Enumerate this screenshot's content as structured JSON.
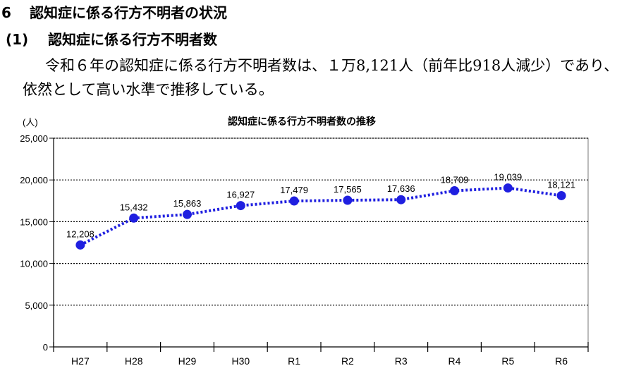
{
  "section": {
    "number": "6",
    "title": "認知症に係る行方不明者の状況"
  },
  "subsection": {
    "number": "(1)",
    "title": "認知症に係る行方不明者数"
  },
  "paragraph": "令和６年の認知症に係る行方不明者数は、１万8,121人（前年比918人減少）であり、依然として高い水準で推移している。",
  "chart_data": {
    "type": "line",
    "title": "認知症に係る行方不明者数の推移",
    "ylabel": "(人)",
    "xlabel": "",
    "categories": [
      "H27",
      "H28",
      "H29",
      "H30",
      "R1",
      "R2",
      "R3",
      "R4",
      "R5",
      "R6"
    ],
    "series": [
      {
        "values": [
          12208,
          15432,
          15863,
          16927,
          17479,
          17565,
          17636,
          18709,
          19039,
          18121
        ]
      }
    ],
    "data_labels": [
      "12,208",
      "15,432",
      "15,863",
      "16,927",
      "17,479",
      "17,565",
      "17,636",
      "18,709",
      "19,039",
      "18,121"
    ],
    "ylim": [
      0,
      25000
    ],
    "yticks": [
      0,
      5000,
      10000,
      15000,
      20000,
      25000
    ],
    "ytick_labels": [
      "0",
      "5,000",
      "10,000",
      "15,000",
      "20,000",
      "25,000"
    ],
    "grid": "horizontal-dotted",
    "legend": "none",
    "line_color": "#1f1fe0",
    "marker_color": "#1f1fe0"
  }
}
